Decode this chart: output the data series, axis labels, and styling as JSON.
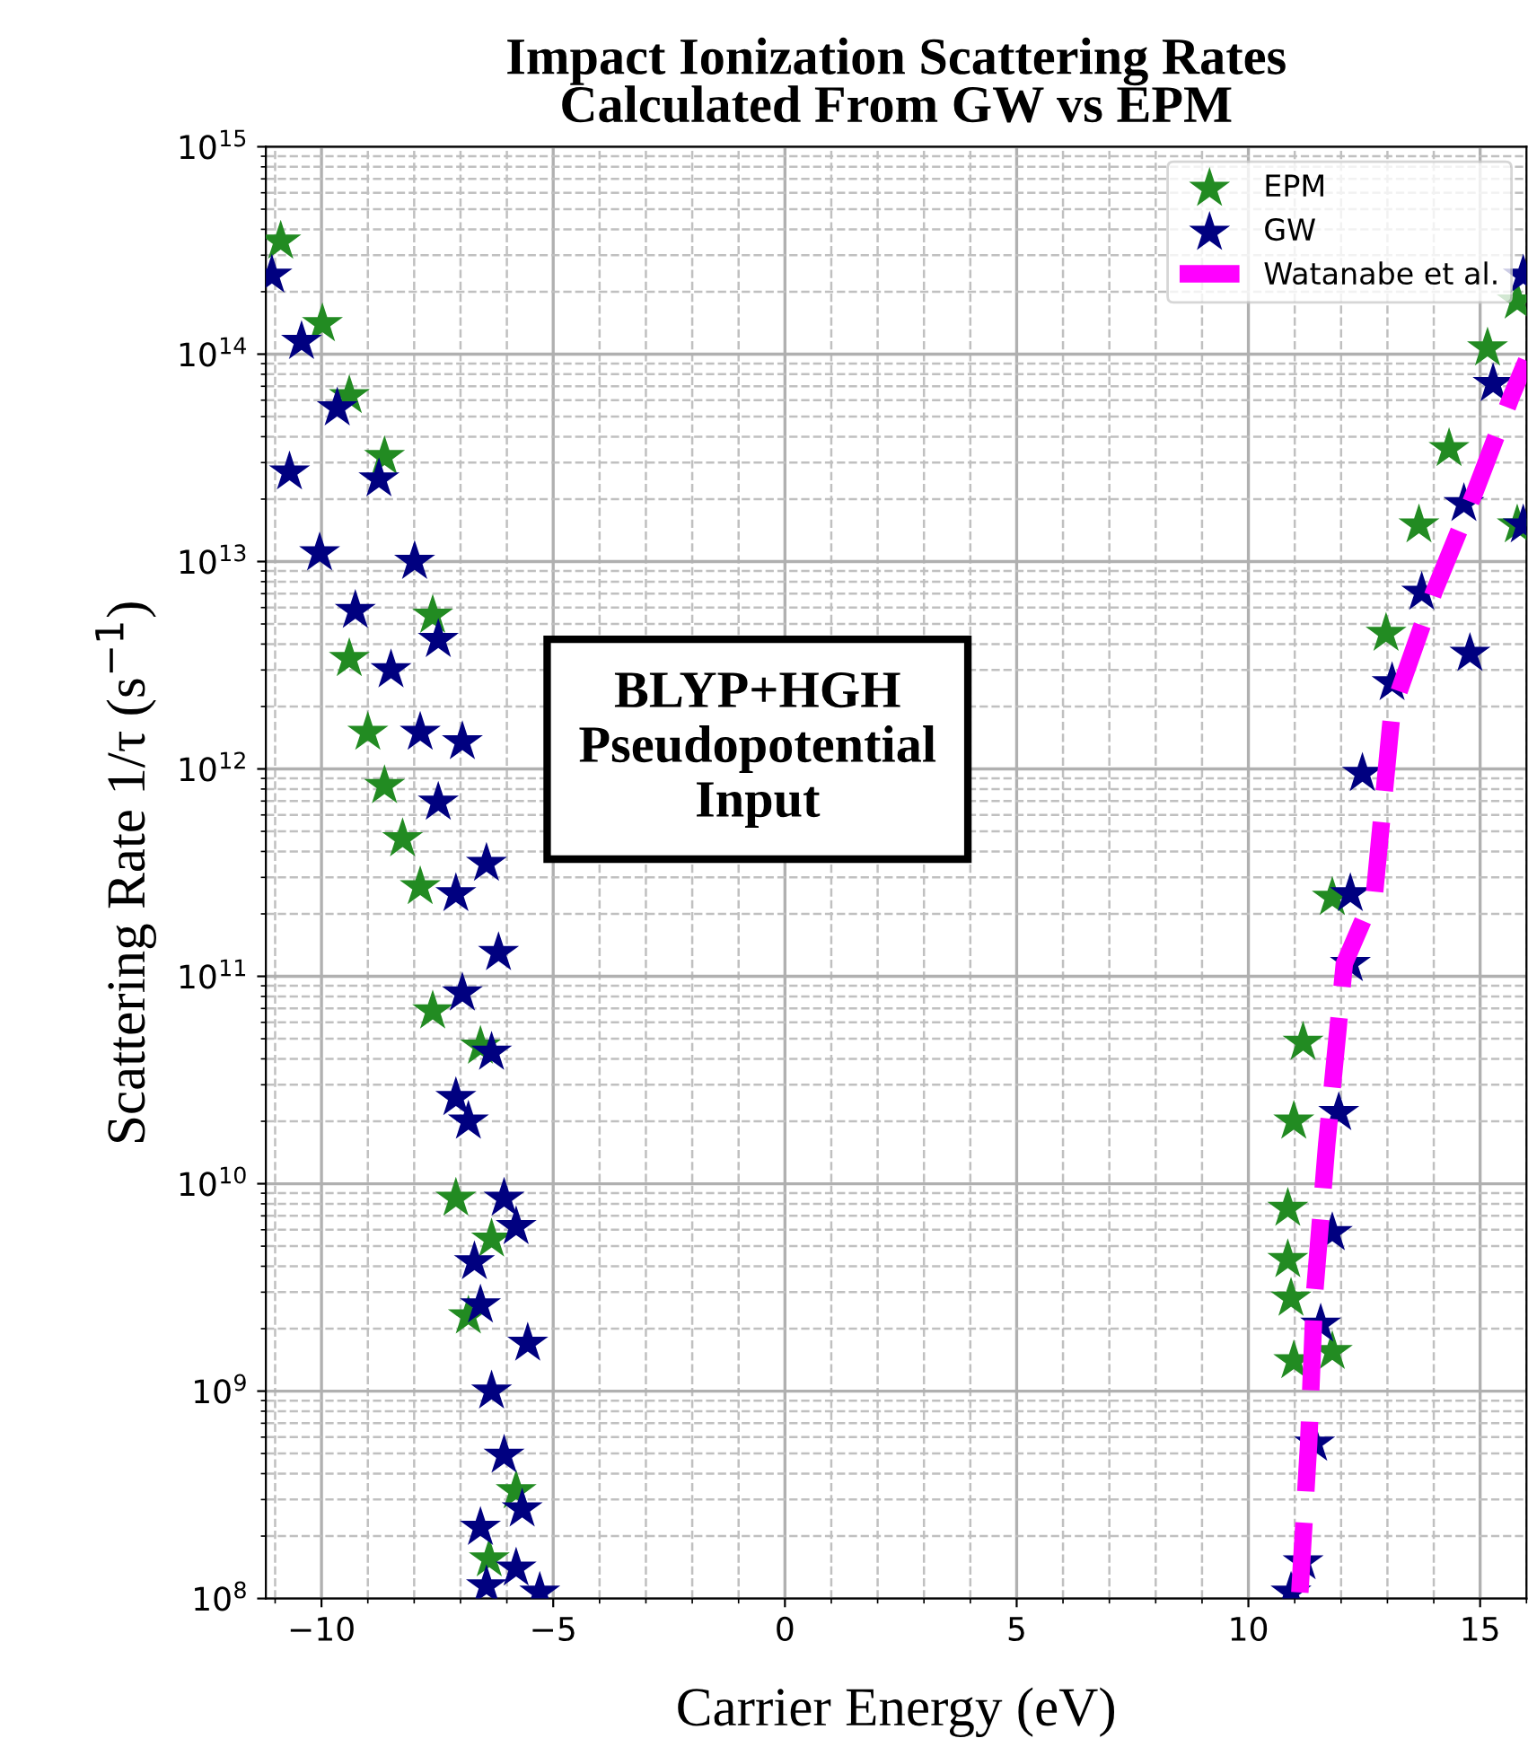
{
  "chart_data": {
    "type": "scatter",
    "title": "Impact Ionization Scattering Rates\nCalculated From GW vs EPM",
    "xlabel": "Carrier Energy (eV)",
    "ylabel": "Scattering Rate 1/τ (s$^{−1}$)",
    "log": "y",
    "xlim": [
      -11.2,
      16
    ],
    "xticks": [
      -10,
      -5,
      0,
      5,
      10,
      15
    ],
    "ylim": [
      100000000.0,
      1000000000000000.0
    ],
    "yticks": [
      {
        "value": 100000000.0,
        "label": "10$^{8}$"
      },
      {
        "value": 1000000000.0,
        "label": "10$^{9}$"
      },
      {
        "value": 10000000000.0,
        "label": "10$^{10}$"
      },
      {
        "value": 100000000000.0,
        "label": "10$^{11}$"
      },
      {
        "value": 1000000000000.0,
        "label": "10$^{12}$"
      },
      {
        "value": 10000000000000.0,
        "label": "10$^{13}$"
      },
      {
        "value": 100000000000000.0,
        "label": "10$^{14}$"
      },
      {
        "value": 1000000000000000.0,
        "label": "10$^{15}$"
      }
    ],
    "grid": true,
    "legend": "top right",
    "marker": "star",
    "annotations": [
      "BLYP+HGH\nPseudopotential\nInput"
    ],
    "series": [
      {
        "name": "EPM",
        "color": "#228b22",
        "x": [
          -10.88,
          -9.98,
          -9.4,
          -8.64,
          -9.4,
          -9.0,
          -8.64,
          -8.25,
          -7.87,
          -7.6,
          -7.6,
          -6.57,
          -7.1,
          -6.33,
          -6.83,
          -5.8,
          -6.38,
          11.18,
          10.98,
          10.85,
          10.85,
          10.92,
          10.98,
          11.81,
          15.16,
          15.8,
          13.68,
          14.33,
          15.8,
          12.97,
          11.81
        ],
        "values": [
          350000000000000.0,
          140000000000000.0,
          63000000000000.0,
          32000000000000.0,
          3400000000000.0,
          1500000000000.0,
          830000000000.0,
          460000000000.0,
          270000000000.0,
          5500000000000.0,
          68000000000.0,
          46000000000.0,
          8500000000.0,
          5400000000.0,
          2300000000.0,
          330000000.0,
          155000000.0,
          48000000000.0,
          20000000000.0,
          7600000000.0,
          4300000000.0,
          2800000000.0,
          1400000000.0,
          1550000000.0,
          107000000000000.0,
          180000000000000.0,
          15000000000000.0,
          35000000000000.0,
          15000000000000.0,
          4500000000000.0,
          240000000000.0
        ]
      },
      {
        "name": "GW",
        "color": "#000080",
        "x": [
          -11.07,
          -10.43,
          -9.66,
          -8.76,
          -7.99,
          -7.48,
          -6.96,
          -6.44,
          -6.18,
          -10.69,
          -10.04,
          -9.27,
          -8.5,
          -7.87,
          -7.48,
          -7.1,
          -6.96,
          -6.33,
          -7.1,
          -6.83,
          -6.06,
          -6.7,
          -5.8,
          -6.57,
          -5.55,
          -6.33,
          -6.06,
          -5.67,
          -6.57,
          -5.8,
          -5.29,
          -6.44,
          15.93,
          15.28,
          14.65,
          13.74,
          13.1,
          12.46,
          12.2,
          15.93,
          14.78,
          12.2,
          11.95,
          11.81,
          11.56,
          11.43,
          11.18,
          10.92
        ],
        "values": [
          240000000000000.0,
          115000000000000.0,
          55000000000000.0,
          25000000000000.0,
          10000000000000.0,
          4200000000000.0,
          1350000000000.0,
          350000000000.0,
          130000000000.0,
          27000000000000.0,
          11000000000000.0,
          5800000000000.0,
          3000000000000.0,
          1500000000000.0,
          690000000000.0,
          250000000000.0,
          83000000000.0,
          43000000000.0,
          26000000000.0,
          20000000000.0,
          8500000000.0,
          4200000000.0,
          6200000000.0,
          2600000000.0,
          1700000000.0,
          1000000000.0,
          490000000.0,
          270000000.0,
          220000000.0,
          140000000.0,
          107000000.0,
          115000000.0,
          240000000000000.0,
          72000000000000.0,
          19000000000000.0,
          7100000000000.0,
          2600000000000.0,
          950000000000.0,
          250000000000.0,
          15000000000000.0,
          3600000000000.0,
          115000000000.0,
          22000000000.0,
          5800000000.0,
          2100000000.0,
          560000000.0,
          150000000.0,
          107000000.0
        ]
      },
      {
        "name": "Watanabe et al.",
        "color": "#ff00ff",
        "type": "line",
        "marker": "none",
        "line_style": "dashed",
        "x": [
          11.11,
          11.3,
          11.43,
          11.69,
          12.07,
          12.72,
          13.1,
          14.0,
          14.9,
          15.68,
          16.0
        ],
        "values": [
          107000000.0,
          560000000.0,
          3000000000.0,
          15500000000.0,
          115000000000.0,
          250000000000.0,
          1900000000000.0,
          7100000000000.0,
          22000000000000.0,
          63000000000000.0,
          93000000000000.0
        ]
      }
    ]
  }
}
